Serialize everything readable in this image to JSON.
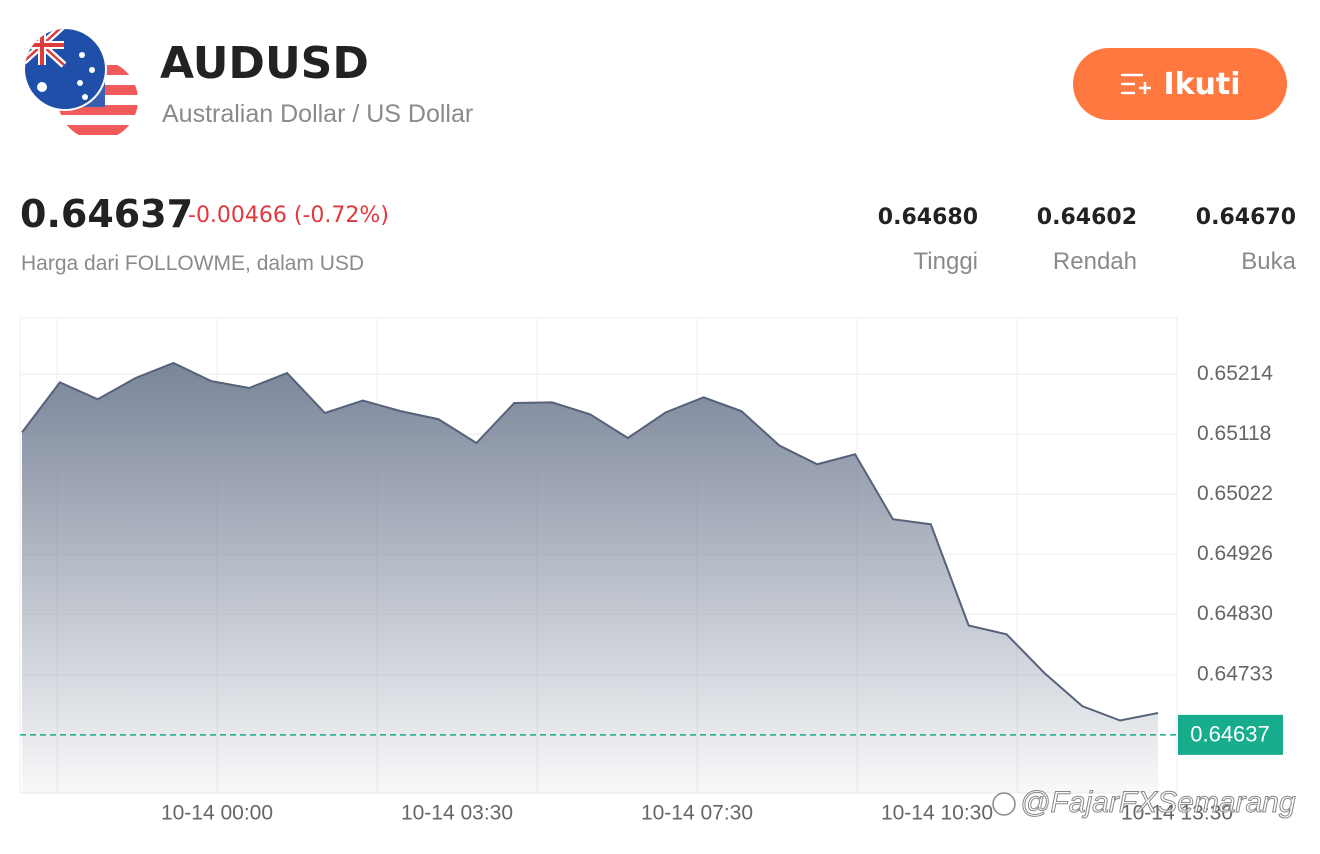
{
  "header": {
    "symbol": "AUDUSD",
    "name": "Australian Dollar / US Dollar",
    "follow_button": "Ikuti"
  },
  "quote": {
    "price": "0.64637",
    "change": "-0.00466 (-0.72%)",
    "source": "Harga dari FOLLOWME, dalam USD",
    "stats": [
      {
        "value": "0.64680",
        "label": "Tinggi"
      },
      {
        "value": "0.64602",
        "label": "Rendah"
      },
      {
        "value": "0.64670",
        "label": "Buka"
      }
    ]
  },
  "watermark": "@FajarFXSemarang",
  "chart_data": {
    "type": "area",
    "values": [
      0.65121,
      0.65201,
      0.65174,
      0.65208,
      0.65232,
      0.65203,
      0.65192,
      0.65216,
      0.65152,
      0.65172,
      0.65155,
      0.65142,
      0.65104,
      0.65168,
      0.65169,
      0.6515,
      0.65112,
      0.65153,
      0.65177,
      0.65155,
      0.651,
      0.6507,
      0.65086,
      0.64982,
      0.64974,
      0.64812,
      0.64798,
      0.64736,
      0.64683,
      0.6466,
      0.64672
    ],
    "x_labels": [
      "10-14 00:00",
      "10-14 03:30",
      "10-14 07:30",
      "10-14 10:30",
      "10-14 13:30"
    ],
    "ylim": [
      0.64544,
      0.65304
    ],
    "yticks": [
      0.65214,
      0.65118,
      0.65022,
      0.64926,
      {
        "value": 0.6483,
        "label": "0.64830"
      },
      0.64733
    ],
    "last_value": 0.64637,
    "line_color": "#55627a",
    "fill_color": "#7a8599",
    "last_color": "#17ad8c",
    "grid": true
  }
}
